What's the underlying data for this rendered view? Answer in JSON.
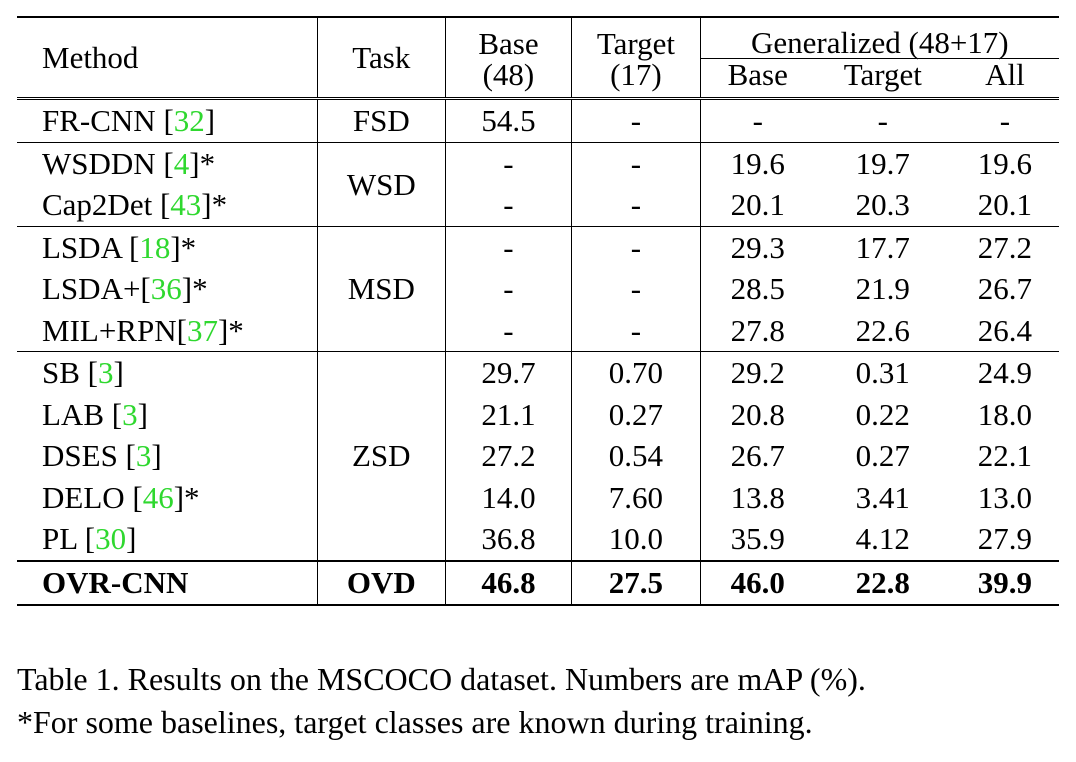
{
  "header": {
    "method": "Method",
    "task": "Task",
    "base_line1": "Base",
    "base_line2": "(48)",
    "target_line1": "Target",
    "target_line2": "(17)",
    "generalized": "Generalized (48+17)",
    "gen_base": "Base",
    "gen_target": "Target",
    "gen_all": "All"
  },
  "groups": {
    "fsd": "FSD",
    "wsd": "WSD",
    "msd": "MSD",
    "zsd": "ZSD",
    "ovd": "OVD"
  },
  "rows": [
    {
      "name": "FR-CNN [",
      "ref": "32",
      "suffix": "]",
      "base": "54.5",
      "target": "-",
      "gb": "-",
      "gt": "-",
      "ga": "-"
    },
    {
      "name": "WSDDN [",
      "ref": "4",
      "suffix": "]*",
      "base": "-",
      "target": "-",
      "gb": "19.6",
      "gt": "19.7",
      "ga": "19.6"
    },
    {
      "name": "Cap2Det [",
      "ref": "43",
      "suffix": "]*",
      "base": "-",
      "target": "-",
      "gb": "20.1",
      "gt": "20.3",
      "ga": "20.1"
    },
    {
      "name": "LSDA [",
      "ref": "18",
      "suffix": "]*",
      "base": "-",
      "target": "-",
      "gb": "29.3",
      "gt": "17.7",
      "ga": "27.2"
    },
    {
      "name": "LSDA+[",
      "ref": "36",
      "suffix": "]*",
      "base": "-",
      "target": "-",
      "gb": "28.5",
      "gt": "21.9",
      "ga": "26.7"
    },
    {
      "name": "MIL+RPN[",
      "ref": "37",
      "suffix": "]*",
      "base": "-",
      "target": "-",
      "gb": "27.8",
      "gt": "22.6",
      "ga": "26.4"
    },
    {
      "name": "SB [",
      "ref": "3",
      "suffix": "]",
      "base": "29.7",
      "target": "0.70",
      "gb": "29.2",
      "gt": "0.31",
      "ga": "24.9"
    },
    {
      "name": "LAB [",
      "ref": "3",
      "suffix": "]",
      "base": "21.1",
      "target": "0.27",
      "gb": "20.8",
      "gt": "0.22",
      "ga": "18.0"
    },
    {
      "name": "DSES [",
      "ref": "3",
      "suffix": "]",
      "base": "27.2",
      "target": "0.54",
      "gb": "26.7",
      "gt": "0.27",
      "ga": "22.1"
    },
    {
      "name": "DELO [",
      "ref": "46",
      "suffix": "]*",
      "base": "14.0",
      "target": "7.60",
      "gb": "13.8",
      "gt": "3.41",
      "ga": "13.0"
    },
    {
      "name": "PL [",
      "ref": "30",
      "suffix": "]",
      "base": "36.8",
      "target": "10.0",
      "gb": "35.9",
      "gt": "4.12",
      "ga": "27.9"
    },
    {
      "name": "OVR-CNN",
      "ref": "",
      "suffix": "",
      "base": "46.8",
      "target": "27.5",
      "gb": "46.0",
      "gt": "22.8",
      "ga": "39.9"
    }
  ],
  "caption": {
    "line1": "Table 1. Results on the MSCOCO dataset. Numbers are mAP (%).",
    "line2": "*For some baselines, target classes are known during training."
  },
  "colors": {
    "reference_link": "#2fd82f",
    "text": "#000000"
  }
}
